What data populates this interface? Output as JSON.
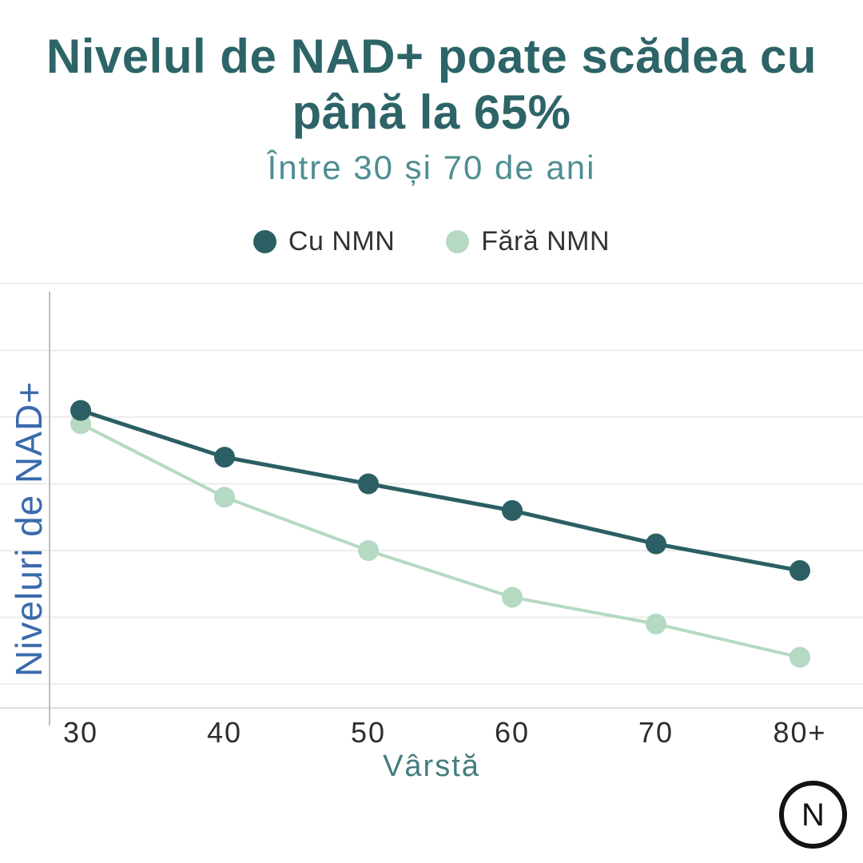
{
  "header": {
    "title_lines": [
      "Nivelul de NAD+ poate scădea cu",
      "până la 65%"
    ],
    "title_full": "Nivelul de NAD+ poate scădea cu până la 65%",
    "subtitle": "Între 30 și 70 de ani"
  },
  "chart_data": {
    "type": "line",
    "categories": [
      "30",
      "40",
      "50",
      "60",
      "70",
      "80+"
    ],
    "series": [
      {
        "name": "Cu NMN",
        "color": "#2b5f63",
        "values": [
          81,
          74,
          70,
          66,
          61,
          57
        ]
      },
      {
        "name": "Fără NMN",
        "color": "#b5d9c2",
        "values": [
          79,
          68,
          60,
          53,
          49,
          44
        ]
      }
    ],
    "xlabel": "Vârstă",
    "ylabel": "Niveluri de NAD+",
    "ylim": [
      40,
      100
    ],
    "y_gridline_step": 10,
    "y_tick_labels_visible": false,
    "values_note": "Relative NAD+ level, estimated from unlabeled gridlines (top gridline = 100)",
    "grid": "horizontal",
    "legend_position": "top-center"
  },
  "footer": {
    "logo_letter": "N"
  },
  "colors": {
    "title": "#2d6468",
    "subtitle": "#4f8e92",
    "y_axis_label": "#3a6aad",
    "x_axis_label": "#447d80",
    "tick_label": "#2d2d2d",
    "legend_text": "#333333",
    "gridline": "#ededed",
    "x_axis_line": "#dcdfe1",
    "y_axis_line": "#b9c0c4",
    "background": "#ffffff"
  }
}
